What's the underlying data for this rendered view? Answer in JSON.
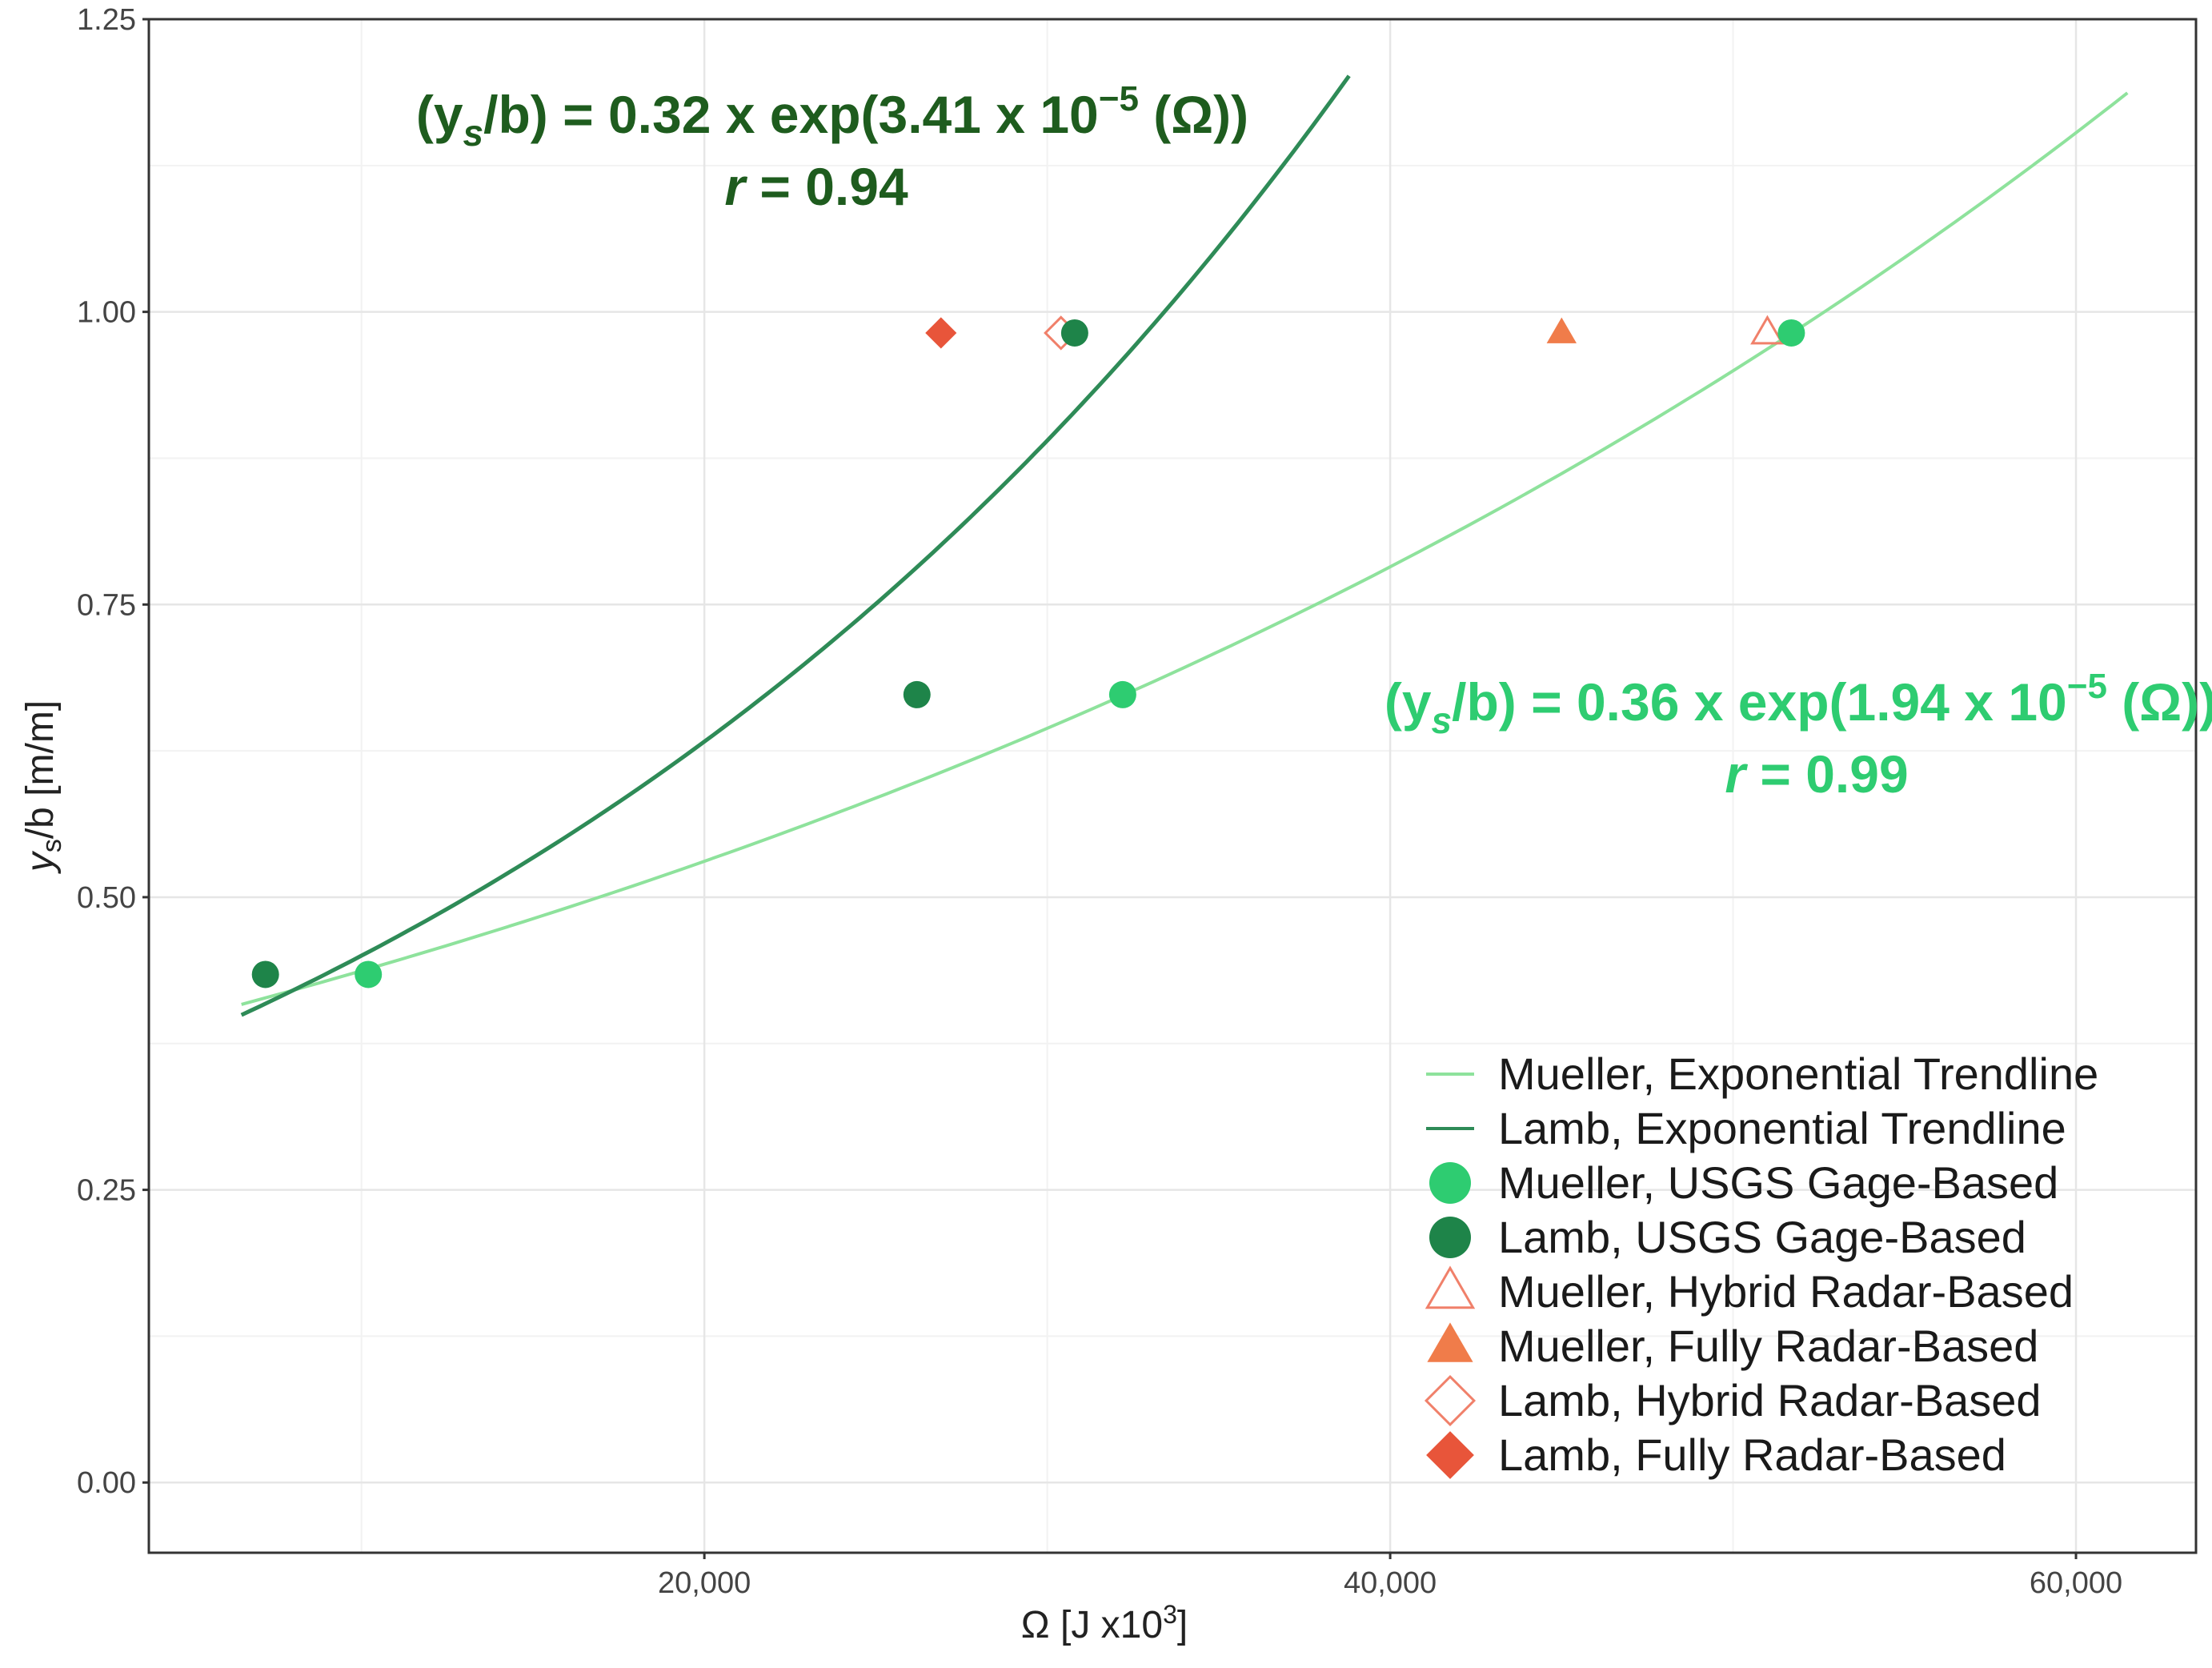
{
  "chart_data": {
    "type": "scatter",
    "xlabel": "Ω [J x10",
    "xlabel_sup": "3",
    "xlabel_close": "]",
    "ylabel_var": "y",
    "ylabel_sub": "s",
    "ylabel_rest": "/b [m/m]",
    "xlim": [
      3800,
      63500
    ],
    "ylim": [
      -0.06,
      1.25
    ],
    "x_ticks": [
      20000,
      40000,
      60000
    ],
    "x_tick_labels": [
      "20,000",
      "40,000",
      "60,000"
    ],
    "y_ticks": [
      0,
      0.25,
      0.5,
      0.75,
      1.0,
      1.25
    ],
    "y_tick_labels": [
      "0.00",
      "0.25",
      "0.50",
      "0.75",
      "1.00",
      "1.25"
    ],
    "grid": true,
    "legend_position": "bottom-right",
    "colors": {
      "mueller": "#2ecc71",
      "mueller_line": "#8ee29c",
      "lamb": "#1e8449",
      "lamb_line": "#2e8b57",
      "hybrid": "#f0806a",
      "fully": "#f07c4a",
      "lamb_radar": "#e8553a",
      "eq_lamb": "#1e5c1e",
      "eq_mueller": "#2ecc71"
    },
    "series": [
      {
        "name": "Mueller, Exponential Trendline",
        "kind": "line",
        "a": 0.36,
        "b": 1.94e-05,
        "x_range": [
          6500,
          61500
        ]
      },
      {
        "name": "Lamb, Exponential Trendline",
        "kind": "line",
        "a": 0.32,
        "b": 3.41e-05,
        "x_range": [
          6500,
          38800
        ]
      },
      {
        "name": "Mueller, USGS Gage-Based",
        "kind": "circle-filled",
        "points": [
          [
            10200,
            0.434
          ],
          [
            32200,
            0.673
          ],
          [
            51700,
            0.982
          ]
        ]
      },
      {
        "name": "Lamb, USGS Gage-Based",
        "kind": "circle-filled",
        "points": [
          [
            7200,
            0.434
          ],
          [
            26200,
            0.673
          ],
          [
            30800,
            0.982
          ]
        ]
      },
      {
        "name": "Mueller, Hybrid Radar-Based",
        "kind": "triangle-open",
        "points": [
          [
            51000,
            0.982
          ]
        ]
      },
      {
        "name": "Mueller, Fully Radar-Based",
        "kind": "triangle-filled",
        "points": [
          [
            45000,
            0.982
          ]
        ]
      },
      {
        "name": "Lamb, Hybrid Radar-Based",
        "kind": "diamond-open",
        "points": [
          [
            30400,
            0.982
          ]
        ]
      },
      {
        "name": "Lamb, Fully Radar-Based",
        "kind": "diamond-filled",
        "points": [
          [
            26900,
            0.982
          ]
        ]
      }
    ],
    "annotations": [
      {
        "id": "lamb",
        "line1": [
          "(y",
          "s",
          "/b) = 0.32 x exp(3.41 x 10",
          "−5",
          " (Ω))"
        ],
        "line2": [
          "r",
          " =  0.94"
        ]
      },
      {
        "id": "mueller",
        "line1": [
          "(y",
          "s",
          "/b) = 0.36 x exp(1.94 x 10",
          "−5",
          " (Ω))"
        ],
        "line2": [
          "r",
          " =  0.99"
        ]
      }
    ]
  }
}
